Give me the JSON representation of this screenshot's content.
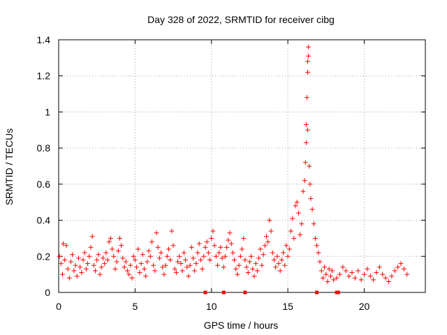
{
  "chart_data": {
    "type": "scatter",
    "title": "Day 328 of 2022, SRMTID for receiver cibg",
    "xlabel": "GPS time / hours",
    "ylabel": "SRMTID / TECUs",
    "xlim": [
      0,
      24
    ],
    "ylim": [
      0,
      1.4
    ],
    "xticks": [
      0,
      5,
      10,
      15,
      20
    ],
    "yticks": [
      0,
      0.2,
      0.4,
      0.6,
      0.8,
      1,
      1.2,
      1.4
    ],
    "xtick_labels": [
      "0",
      "5",
      "10",
      "15",
      "20"
    ],
    "ytick_labels": [
      "0",
      "0.2",
      "0.4",
      "0.6",
      "0.8",
      "1",
      "1.2",
      "1.4"
    ],
    "grid": true,
    "marker": "+",
    "color": "#ff0000",
    "baseline_markers_x": [
      9.6,
      10.8,
      12.2,
      16.9,
      18.2,
      18.3
    ],
    "series": [
      {
        "name": "SRMTID",
        "points": [
          [
            0.05,
            0.2
          ],
          [
            0.15,
            0.16
          ],
          [
            0.25,
            0.1
          ],
          [
            0.3,
            0.27
          ],
          [
            0.4,
            0.18
          ],
          [
            0.5,
            0.26
          ],
          [
            0.6,
            0.13
          ],
          [
            0.7,
            0.08
          ],
          [
            0.8,
            0.17
          ],
          [
            0.9,
            0.21
          ],
          [
            1.0,
            0.12
          ],
          [
            1.1,
            0.15
          ],
          [
            1.2,
            0.09
          ],
          [
            1.3,
            0.19
          ],
          [
            1.4,
            0.14
          ],
          [
            1.5,
            0.11
          ],
          [
            1.6,
            0.18
          ],
          [
            1.7,
            0.22
          ],
          [
            1.8,
            0.13
          ],
          [
            1.9,
            0.16
          ],
          [
            2.0,
            0.2
          ],
          [
            2.1,
            0.25
          ],
          [
            2.2,
            0.31
          ],
          [
            2.3,
            0.15
          ],
          [
            2.4,
            0.12
          ],
          [
            2.5,
            0.18
          ],
          [
            2.6,
            0.21
          ],
          [
            2.7,
            0.1
          ],
          [
            2.8,
            0.14
          ],
          [
            2.9,
            0.19
          ],
          [
            3.0,
            0.16
          ],
          [
            3.1,
            0.22
          ],
          [
            3.2,
            0.18
          ],
          [
            3.3,
            0.28
          ],
          [
            3.4,
            0.3
          ],
          [
            3.5,
            0.24
          ],
          [
            3.6,
            0.2
          ],
          [
            3.7,
            0.13
          ],
          [
            3.8,
            0.17
          ],
          [
            3.9,
            0.23
          ],
          [
            4.0,
            0.3
          ],
          [
            4.1,
            0.26
          ],
          [
            4.2,
            0.19
          ],
          [
            4.3,
            0.14
          ],
          [
            4.4,
            0.17
          ],
          [
            4.5,
            0.12
          ],
          [
            4.6,
            0.1
          ],
          [
            4.7,
            0.15
          ],
          [
            4.8,
            0.08
          ],
          [
            4.9,
            0.2
          ],
          [
            5.0,
            0.18
          ],
          [
            5.1,
            0.14
          ],
          [
            5.2,
            0.24
          ],
          [
            5.3,
            0.11
          ],
          [
            5.4,
            0.16
          ],
          [
            5.5,
            0.21
          ],
          [
            5.6,
            0.13
          ],
          [
            5.7,
            0.09
          ],
          [
            5.8,
            0.17
          ],
          [
            5.9,
            0.23
          ],
          [
            6.0,
            0.2
          ],
          [
            6.1,
            0.28
          ],
          [
            6.2,
            0.15
          ],
          [
            6.3,
            0.12
          ],
          [
            6.4,
            0.33
          ],
          [
            6.5,
            0.25
          ],
          [
            6.6,
            0.19
          ],
          [
            6.7,
            0.22
          ],
          [
            6.8,
            0.14
          ],
          [
            6.9,
            0.1
          ],
          [
            7.0,
            0.15
          ],
          [
            7.1,
            0.2
          ],
          [
            7.2,
            0.24
          ],
          [
            7.3,
            0.18
          ],
          [
            7.4,
            0.34
          ],
          [
            7.5,
            0.26
          ],
          [
            7.6,
            0.13
          ],
          [
            7.7,
            0.11
          ],
          [
            7.8,
            0.17
          ],
          [
            7.9,
            0.2
          ],
          [
            8.0,
            0.16
          ],
          [
            8.1,
            0.12
          ],
          [
            8.2,
            0.22
          ],
          [
            8.3,
            0.18
          ],
          [
            8.4,
            0.14
          ],
          [
            8.5,
            0.09
          ],
          [
            8.6,
            0.15
          ],
          [
            8.7,
            0.25
          ],
          [
            8.8,
            0.19
          ],
          [
            8.9,
            0.12
          ],
          [
            9.0,
            0.16
          ],
          [
            9.1,
            0.22
          ],
          [
            9.2,
            0.27
          ],
          [
            9.3,
            0.18
          ],
          [
            9.4,
            0.13
          ],
          [
            9.5,
            0.2
          ],
          [
            9.6,
            0.25
          ],
          [
            9.7,
            0.28
          ],
          [
            9.8,
            0.22
          ],
          [
            9.9,
            0.18
          ],
          [
            10.0,
            0.3
          ],
          [
            10.1,
            0.34
          ],
          [
            10.2,
            0.26
          ],
          [
            10.3,
            0.2
          ],
          [
            10.4,
            0.15
          ],
          [
            10.5,
            0.22
          ],
          [
            10.6,
            0.25
          ],
          [
            10.7,
            0.19
          ],
          [
            10.8,
            0.14
          ],
          [
            10.9,
            0.2
          ],
          [
            11.0,
            0.25
          ],
          [
            11.1,
            0.29
          ],
          [
            11.2,
            0.33
          ],
          [
            11.3,
            0.27
          ],
          [
            11.4,
            0.22
          ],
          [
            11.5,
            0.18
          ],
          [
            11.6,
            0.13
          ],
          [
            11.7,
            0.1
          ],
          [
            11.8,
            0.15
          ],
          [
            11.9,
            0.2
          ],
          [
            12.0,
            0.24
          ],
          [
            12.1,
            0.3
          ],
          [
            12.2,
            0.18
          ],
          [
            12.3,
            0.14
          ],
          [
            12.4,
            0.11
          ],
          [
            12.5,
            0.17
          ],
          [
            12.6,
            0.2
          ],
          [
            12.7,
            0.13
          ],
          [
            12.8,
            0.09
          ],
          [
            12.9,
            0.16
          ],
          [
            13.0,
            0.12
          ],
          [
            13.1,
            0.19
          ],
          [
            13.2,
            0.24
          ],
          [
            13.3,
            0.15
          ],
          [
            13.4,
            0.21
          ],
          [
            13.5,
            0.26
          ],
          [
            13.6,
            0.31
          ],
          [
            13.7,
            0.28
          ],
          [
            13.8,
            0.4
          ],
          [
            13.9,
            0.34
          ],
          [
            14.0,
            0.22
          ],
          [
            14.1,
            0.18
          ],
          [
            14.2,
            0.14
          ],
          [
            14.3,
            0.2
          ],
          [
            14.4,
            0.16
          ],
          [
            14.5,
            0.12
          ],
          [
            14.6,
            0.18
          ],
          [
            14.7,
            0.22
          ],
          [
            14.8,
            0.15
          ],
          [
            14.9,
            0.26
          ],
          [
            15.0,
            0.2
          ],
          [
            15.1,
            0.24
          ],
          [
            15.2,
            0.34
          ],
          [
            15.3,
            0.41
          ],
          [
            15.4,
            0.3
          ],
          [
            15.5,
            0.48
          ],
          [
            15.6,
            0.5
          ],
          [
            15.7,
            0.44
          ],
          [
            15.8,
            0.32
          ],
          [
            15.9,
            0.38
          ],
          [
            16.0,
            0.56
          ],
          [
            16.1,
            0.62
          ],
          [
            16.15,
            0.72
          ],
          [
            16.2,
            0.83
          ],
          [
            16.2,
            0.93
          ],
          [
            16.25,
            1.08
          ],
          [
            16.3,
            1.22
          ],
          [
            16.3,
            1.28
          ],
          [
            16.35,
            1.36
          ],
          [
            16.35,
            1.31
          ],
          [
            16.3,
            0.9
          ],
          [
            16.4,
            0.7
          ],
          [
            16.45,
            0.6
          ],
          [
            16.5,
            0.52
          ],
          [
            16.6,
            0.46
          ],
          [
            16.7,
            0.38
          ],
          [
            16.8,
            0.3
          ],
          [
            16.9,
            0.26
          ],
          [
            17.0,
            0.22
          ],
          [
            17.1,
            0.17
          ],
          [
            17.2,
            0.12
          ],
          [
            17.3,
            0.08
          ],
          [
            17.4,
            0.14
          ],
          [
            17.5,
            0.1
          ],
          [
            17.6,
            0.06
          ],
          [
            17.7,
            0.13
          ],
          [
            17.8,
            0.09
          ],
          [
            17.9,
            0.12
          ],
          [
            18.0,
            0.07
          ],
          [
            18.2,
            0.08
          ],
          [
            18.4,
            0.1
          ],
          [
            18.6,
            0.14
          ],
          [
            18.8,
            0.12
          ],
          [
            19.0,
            0.09
          ],
          [
            19.2,
            0.11
          ],
          [
            19.4,
            0.08
          ],
          [
            19.6,
            0.12
          ],
          [
            19.8,
            0.07
          ],
          [
            20.0,
            0.1
          ],
          [
            20.2,
            0.13
          ],
          [
            20.4,
            0.09
          ],
          [
            20.6,
            0.07
          ],
          [
            20.8,
            0.11
          ],
          [
            21.0,
            0.14
          ],
          [
            21.2,
            0.1
          ],
          [
            21.4,
            0.08
          ],
          [
            21.6,
            0.06
          ],
          [
            21.8,
            0.09
          ],
          [
            22.0,
            0.12
          ],
          [
            22.2,
            0.14
          ],
          [
            22.4,
            0.16
          ],
          [
            22.6,
            0.13
          ],
          [
            22.8,
            0.1
          ]
        ]
      }
    ]
  }
}
